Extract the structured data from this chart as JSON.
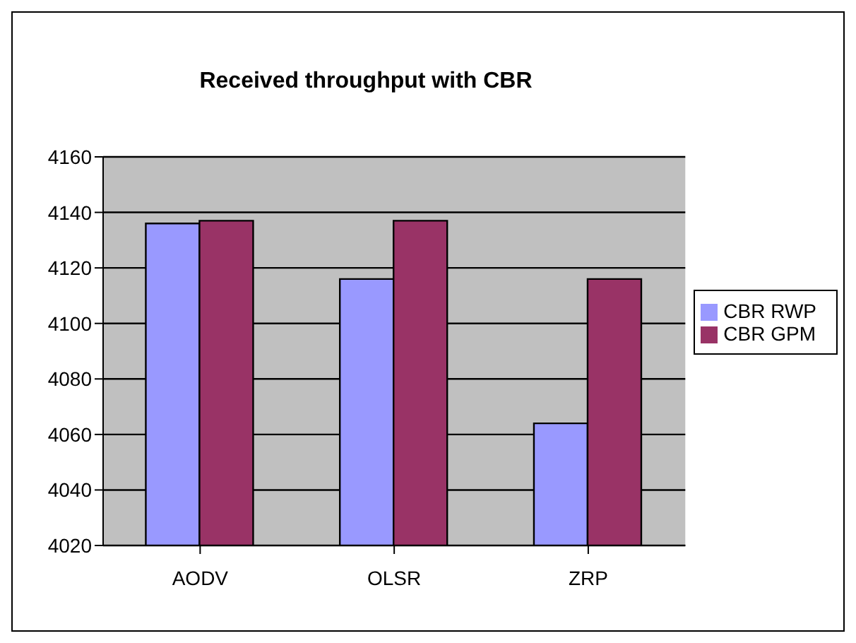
{
  "chart_data": {
    "type": "bar",
    "title": "Received throughput with CBR",
    "categories": [
      "AODV",
      "OLSR",
      "ZRP"
    ],
    "series": [
      {
        "name": "CBR RWP",
        "color": "#9999ff",
        "values": [
          4136,
          4116,
          4064
        ]
      },
      {
        "name": "CBR GPM",
        "color": "#993366",
        "values": [
          4137,
          4137,
          4116
        ]
      }
    ],
    "ylim": [
      4020,
      4160
    ],
    "yticks": [
      4020,
      4040,
      4060,
      4080,
      4100,
      4120,
      4140,
      4160
    ],
    "grid": "y",
    "legend": "right"
  }
}
